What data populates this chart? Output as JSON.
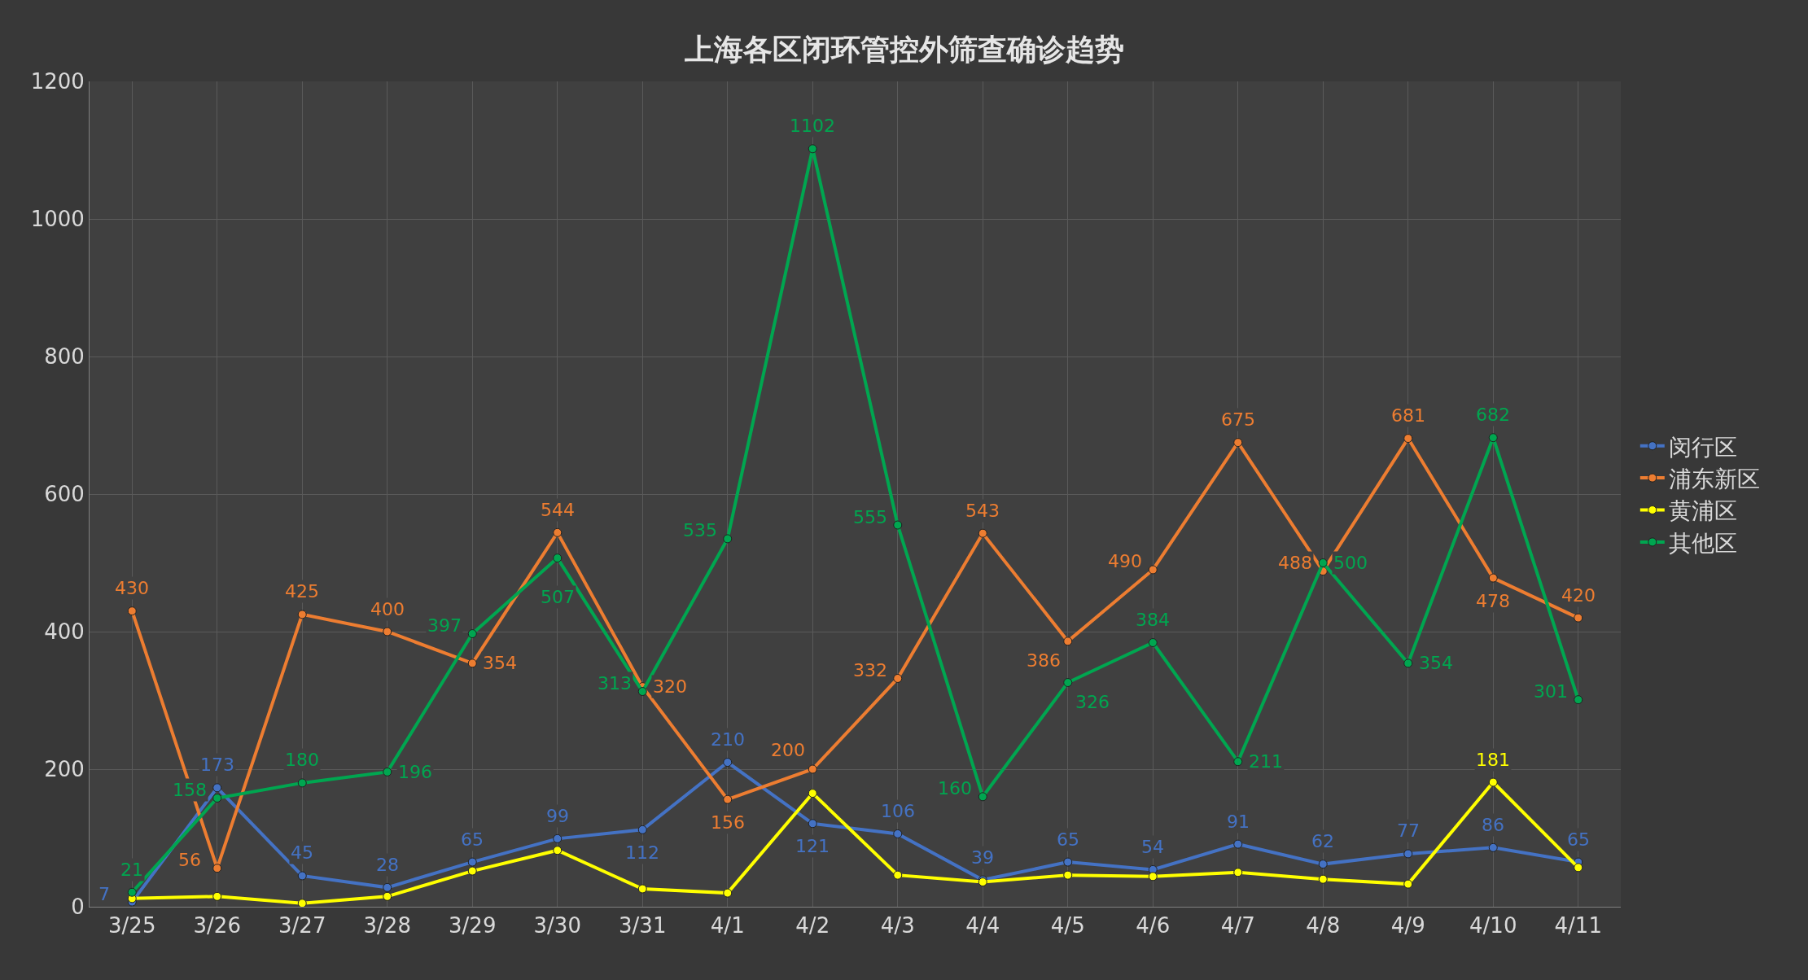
{
  "chart_data": {
    "type": "line",
    "title": "上海各区闭环管控外筛查确诊趋势",
    "categories": [
      "3/25",
      "3/26",
      "3/27",
      "3/28",
      "3/29",
      "3/30",
      "3/31",
      "4/1",
      "4/2",
      "4/3",
      "4/4",
      "4/5",
      "4/6",
      "4/7",
      "4/8",
      "4/9",
      "4/10",
      "4/11"
    ],
    "series": [
      {
        "name": "闵行区",
        "color": "#4472c4",
        "values": [
          7,
          173,
          45,
          28,
          65,
          99,
          112,
          210,
          121,
          106,
          39,
          65,
          54,
          91,
          62,
          77,
          86,
          65
        ],
        "value_labels": [
          "7",
          "173",
          "45",
          "28",
          "65",
          "99",
          "112",
          "210",
          "121",
          "106",
          "39",
          "65",
          "54",
          "91",
          "62",
          "77",
          "86",
          "65"
        ]
      },
      {
        "name": "浦东新区",
        "color": "#ed7d31",
        "values": [
          430,
          56,
          425,
          400,
          354,
          544,
          320,
          156,
          200,
          332,
          543,
          386,
          490,
          675,
          488,
          681,
          478,
          420
        ],
        "value_labels": [
          "430",
          "56",
          "425",
          "400",
          "354",
          "544",
          "320",
          "156",
          "200",
          "332",
          "543",
          "386",
          "490",
          "675",
          "488",
          "681",
          "478",
          "420"
        ]
      },
      {
        "name": "黄浦区",
        "color": "#ffff00",
        "values": [
          12,
          15,
          5,
          15,
          52,
          82,
          26,
          20,
          165,
          46,
          36,
          46,
          44,
          50,
          40,
          33,
          181,
          57
        ],
        "value_labels": [
          null,
          null,
          null,
          null,
          null,
          null,
          null,
          null,
          null,
          null,
          null,
          null,
          null,
          null,
          null,
          null,
          "181",
          null
        ]
      },
      {
        "name": "其他区",
        "color": "#00a650",
        "values": [
          21,
          158,
          180,
          196,
          397,
          507,
          313,
          535,
          1102,
          555,
          160,
          326,
          384,
          211,
          500,
          354,
          682,
          301
        ],
        "value_labels": [
          "21",
          "158",
          "180",
          "196",
          "397",
          "507",
          "313",
          "535",
          "1102",
          "555",
          "160",
          "326",
          "384",
          "211",
          "500",
          "354",
          "682",
          "301"
        ]
      }
    ],
    "ylim": [
      0,
      1200
    ],
    "yticks": [
      0,
      200,
      400,
      600,
      800,
      1000,
      1200
    ],
    "grid": true,
    "legend": "right",
    "marker": "circle",
    "line_style": "solid"
  }
}
